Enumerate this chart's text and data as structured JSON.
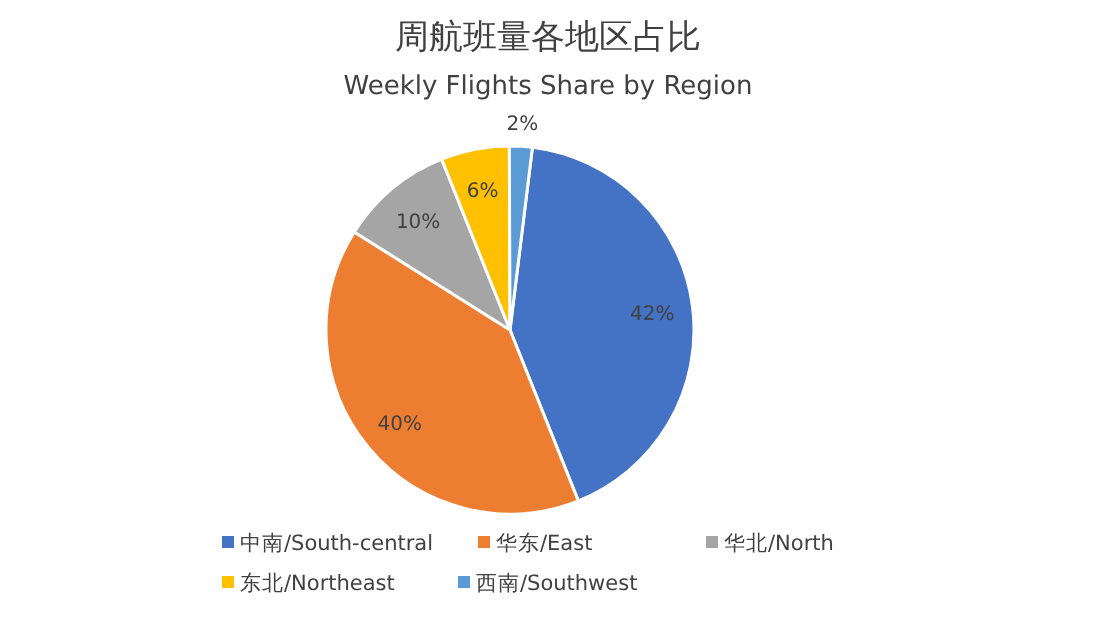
{
  "chart_data": {
    "type": "pie",
    "title": "周航班量各地区占比",
    "subtitle": "Weekly Flights Share by Region",
    "categories": [
      "中南/South-central",
      "华东/East",
      "华北/North",
      "东北/Northeast",
      "西南/Southwest"
    ],
    "values": [
      42,
      40,
      10,
      6,
      2
    ],
    "colors": [
      "#4472c4",
      "#ed7d31",
      "#a5a5a5",
      "#ffc000",
      "#5b9bd5"
    ],
    "value_labels": [
      "42%",
      "40%",
      "10%",
      "6%",
      "2%"
    ],
    "legend": "bottom"
  }
}
